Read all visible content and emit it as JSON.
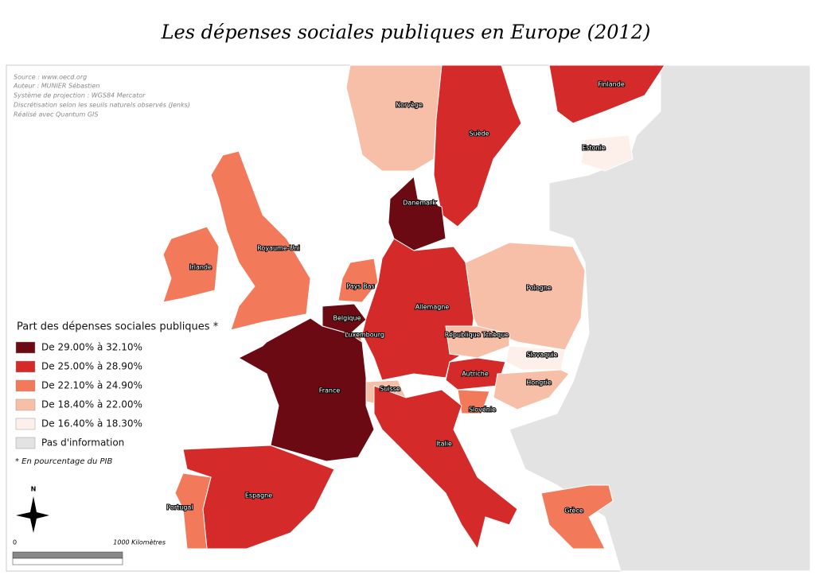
{
  "title": "Les dépenses sociales publiques en Europe (2012)",
  "metadata": [
    "Source : www.oecd.org",
    "Auteur : MUNIER Sébastien",
    "Système de projection : WGS84 Mercator",
    "Discrétisation selon les seuils naturels observés (Jenks)",
    "Réalisé avec Quantum GIS"
  ],
  "legend": {
    "title": "Part des dépenses sociales publiques *",
    "classes": [
      {
        "label": "De 29.00% à 32.10%",
        "color": "#6b0a12"
      },
      {
        "label": "De 25.00% à 28.90%",
        "color": "#d42a2a"
      },
      {
        "label": "De 22.10% à 24.90%",
        "color": "#f27a5a"
      },
      {
        "label": "De 18.40% à 22.00%",
        "color": "#f7bfa8"
      },
      {
        "label": "De 16.40% à 18.30%",
        "color": "#fdf0ea"
      },
      {
        "label": "Pas d'information",
        "color": "#e3e3e3"
      }
    ],
    "note": "* En pourcentage du PIB"
  },
  "countries": [
    {
      "name": "Finlande",
      "color": "#d42a2a"
    },
    {
      "name": "Norvège",
      "color": "#f7bfa8"
    },
    {
      "name": "Suède",
      "color": "#d42a2a"
    },
    {
      "name": "Estonie",
      "color": "#fdf0ea"
    },
    {
      "name": "Danemark",
      "color": "#6b0a12"
    },
    {
      "name": "Royaume-Uni",
      "color": "#f27a5a"
    },
    {
      "name": "Irlande",
      "color": "#f27a5a"
    },
    {
      "name": "Pays Bas",
      "color": "#f27a5a"
    },
    {
      "name": "Belgique",
      "color": "#6b0a12"
    },
    {
      "name": "Luxembourg",
      "color": "#f27a5a"
    },
    {
      "name": "Allemagne",
      "color": "#d42a2a"
    },
    {
      "name": "Pologne",
      "color": "#f7bfa8"
    },
    {
      "name": "République Tchèque",
      "color": "#f7bfa8"
    },
    {
      "name": "Slovaquie",
      "color": "#fdf0ea"
    },
    {
      "name": "Autriche",
      "color": "#d42a2a"
    },
    {
      "name": "Hongrie",
      "color": "#f7bfa8"
    },
    {
      "name": "Suisse",
      "color": "#f7bfa8"
    },
    {
      "name": "Slovénie",
      "color": "#f27a5a"
    },
    {
      "name": "France",
      "color": "#6b0a12"
    },
    {
      "name": "Italie",
      "color": "#d42a2a"
    },
    {
      "name": "Espagne",
      "color": "#d42a2a"
    },
    {
      "name": "Portugal",
      "color": "#f27a5a"
    },
    {
      "name": "Grèce",
      "color": "#f27a5a"
    }
  ],
  "compass": "N",
  "scale": {
    "start": "0",
    "end": "1000 Kilomètres"
  }
}
